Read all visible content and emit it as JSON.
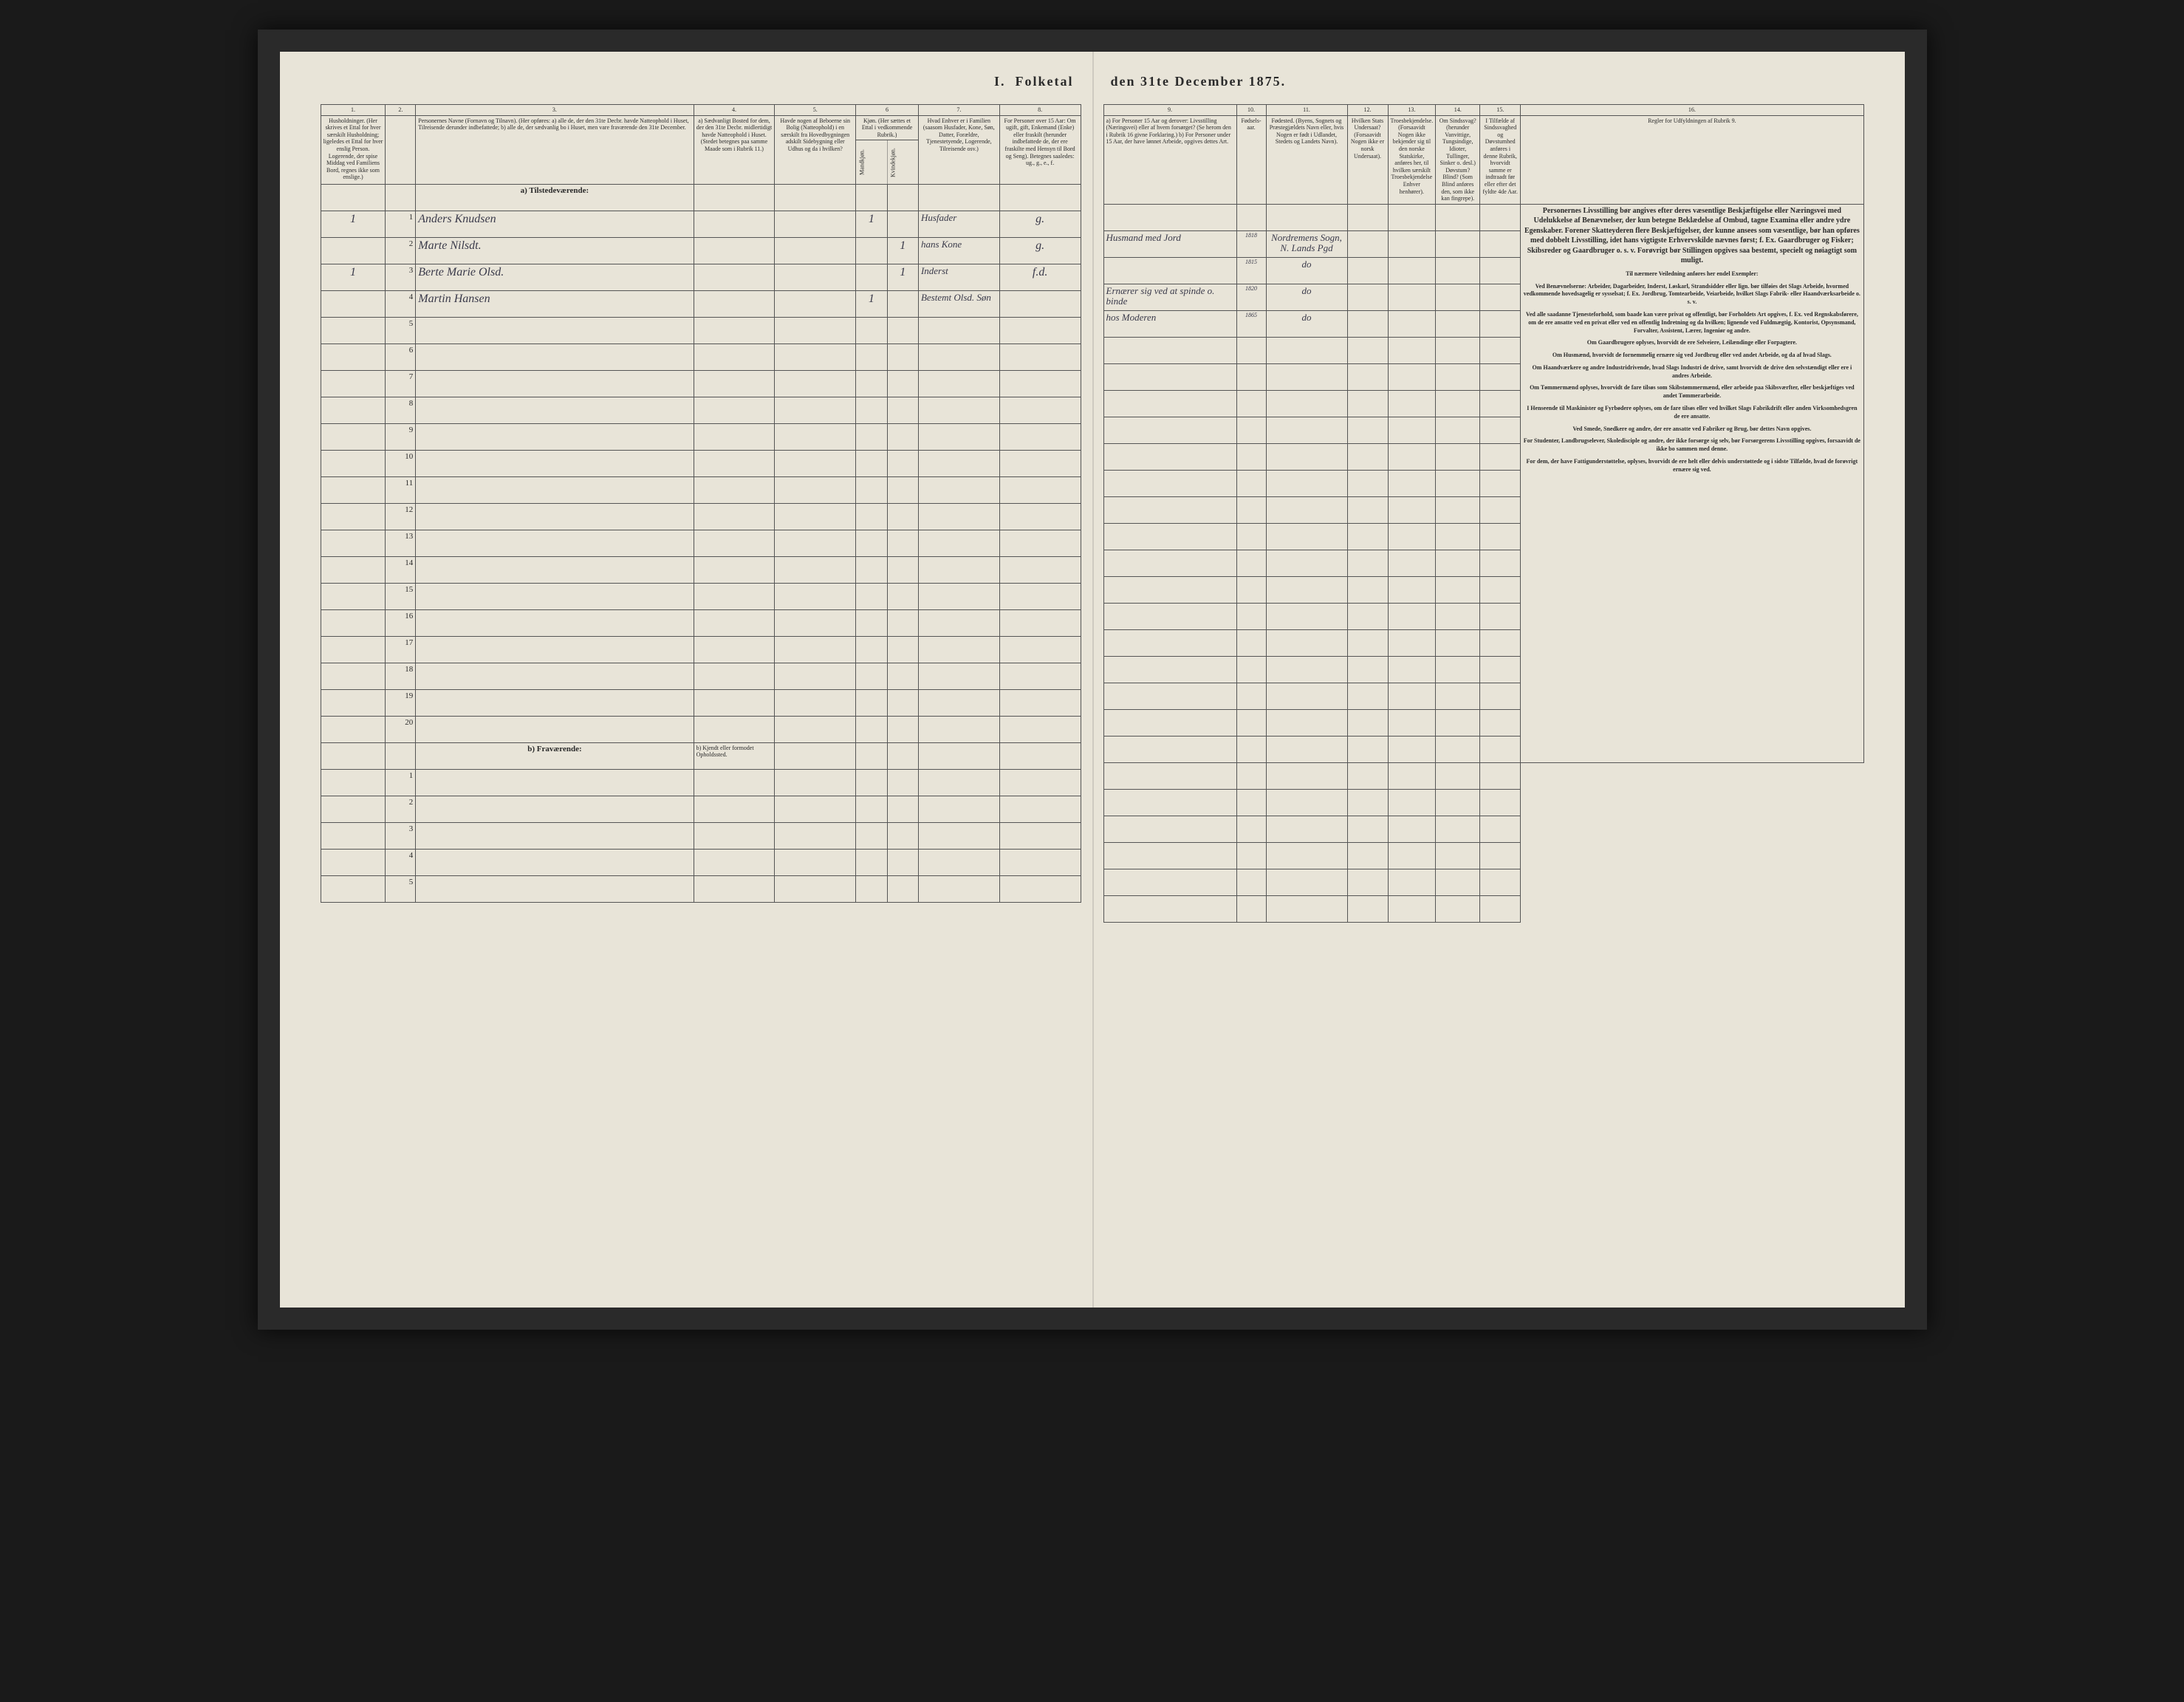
{
  "title": "I.  Folketal den 31te December 1875.",
  "columns_left": {
    "1": {
      "num": "1.",
      "header": "Husholdninger. (Her skrives et Ettal for hver særskilt Husholdning; ligeledes et Ettal for hver enslig Person. Logerende, der spise Middag ved Familiens Bord, regnes ikke som enslige.)"
    },
    "2": {
      "num": "2.",
      "header": ""
    },
    "3": {
      "num": "3.",
      "header": "Personernes Navne (Fornavn og Tilnavn). (Her opføres: a) alle de, der den 31te Decbr. havde Natteophold i Huset, Tilreisende derunder indbefattede; b) alle de, der sædvanlig bo i Huset, men vare fraværende den 31te December."
    },
    "4": {
      "num": "4.",
      "header": "a) Sædvanligt Bosted for dem, der den 31te Decbr. midlertidigt havde Natteophold i Huset. (Stedet betegnes paa samme Maade som i Rubrik 11.)"
    },
    "5": {
      "num": "5.",
      "header": "Havde nogen af Beboerne sin Bolig (Natteophold) i en særskilt fra Hovedbygningen adskilt Sidebygning eller Udhus og da i hvilken?"
    },
    "6": {
      "num": "6",
      "header": "Kjøn. (Her sættes et Ettal i vedkommende Rubrik.)",
      "sub_m": "Mandkjøn.",
      "sub_k": "Kvindekjøn."
    },
    "7": {
      "num": "7.",
      "header": "Hvad Enhver er i Familien (saasom Husfader, Kone, Søn, Datter, Forældre, Tjenestetyende, Logerende, Tilreisende osv.)"
    },
    "8": {
      "num": "8.",
      "header": "For Personer over 15 Aar: Om ugift, gift, Enkemand (Enke) eller fraskilt (herunder indbefattede de, der ere fraskilte med Hensyn til Bord og Seng). Betegnes saaledes: ug., g., e., f."
    }
  },
  "columns_right": {
    "9": {
      "num": "9.",
      "header": "a) For Personer 15 Aar og derover: Livsstilling (Næringsvei) eller af hvem forsørget? (Se herom den i Rubrik 16 givne Forklaring.) b) For Personer under 15 Aar, der have lønnet Arbeide, opgives dettes Art."
    },
    "10": {
      "num": "10.",
      "header": "Fødsels-aar."
    },
    "11": {
      "num": "11.",
      "header": "Fødested. (Byens, Sognets og Præstegjældets Navn eller, hvis Nogen er født i Udlandet, Stedets og Landets Navn)."
    },
    "12": {
      "num": "12.",
      "header": "Hvilken Stats Undersaat? (Forsaavidt Nogen ikke er norsk Undersaat)."
    },
    "13": {
      "num": "13.",
      "header": "Troesbekjendelse. (Forsaavidt Nogen ikke bekjender sig til den norske Statskirke, anføres her, til hvilken særskilt Troesbekjendelse Enhver henhører)."
    },
    "14": {
      "num": "14.",
      "header": "Om Sindssvag? (herunder Vanvittige, Tungsindige, Idioter, Tullinger, Sinker o. desl.) Døvstum? Blind? (Som Blind anføres den, som ikke kan fingrepe)."
    },
    "15": {
      "num": "15.",
      "header": "I Tilfælde af Sindssvaghed og Døvstumhed anføres i denne Rubrik, hvorvidt samme er indtraadt før eller efter det fyldte 4de Aar."
    },
    "16": {
      "num": "16.",
      "header": "Regler for Udfyldningen af Rubrik 9."
    }
  },
  "section_a": "a) Tilstedeværende:",
  "section_b": "b) Fraværende:",
  "section_b_col4": "b) Kjendt eller formodet Opholdssted.",
  "rows": [
    {
      "n": "1",
      "hh": "1",
      "name": "Anders Knudsen",
      "col6": "1",
      "col7": "Husfader",
      "col8": "g.",
      "col9": "Husmand med Jord",
      "year": "1818",
      "place": "Nordremens Sogn, N. Lands Pgd"
    },
    {
      "n": "2",
      "hh": "",
      "name": "Marte Nilsdt.",
      "col6": "1",
      "col7": "hans Kone",
      "col8": "g.",
      "col9": "",
      "year": "1815",
      "place": "do"
    },
    {
      "n": "3",
      "hh": "1",
      "name": "Berte Marie Olsd.",
      "col6": "1",
      "col7": "Inderst",
      "col8": "f.d.",
      "col9": "Ernærer sig ved at spinde o. binde",
      "year": "1820",
      "place": "do"
    },
    {
      "n": "4",
      "hh": "",
      "name": "Martin Hansen",
      "col6": "1",
      "col7": "Bestemt Olsd. Søn",
      "col8": "",
      "col9": "hos Moderen",
      "year": "1865",
      "place": "do"
    },
    {
      "n": "5"
    },
    {
      "n": "6"
    },
    {
      "n": "7"
    },
    {
      "n": "8"
    },
    {
      "n": "9"
    },
    {
      "n": "10"
    },
    {
      "n": "11"
    },
    {
      "n": "12"
    },
    {
      "n": "13"
    },
    {
      "n": "14"
    },
    {
      "n": "15"
    },
    {
      "n": "16"
    },
    {
      "n": "17"
    },
    {
      "n": "18"
    },
    {
      "n": "19"
    },
    {
      "n": "20"
    }
  ],
  "rows_b": [
    {
      "n": "1"
    },
    {
      "n": "2"
    },
    {
      "n": "3"
    },
    {
      "n": "4"
    },
    {
      "n": "5"
    }
  ],
  "instructions": {
    "p1": "Personernes Livsstilling bør angives efter deres væsentlige Beskjæftigelse eller Næringsvei med Udelukkelse af Benævnelser, der kun betegne Beklædelse af Ombud, tagne Examina eller andre ydre Egenskaber. Forener Skatteyderen flere Beskjæftigelser, der kunne ansees som væsentlige, bør han opføres med dobbelt Livsstilling, idet hans vigtigste Erhvervskilde nævnes først; f. Ex. Gaardbruger og Fisker; Skibsreder og Gaardbruger o. s. v. Forøvrigt bør Stillingen opgives saa bestemt, specielt og nøiagtigt som muligt.",
    "p2": "Til nærmere Veiledning anføres her endel Exempler:",
    "p3": "Ved Benævnelserne: Arbeider, Dagarbeider, Inderst, Løskarl, Strandsidder eller lign. bør tilføies det Slags Arbeide, hvormed vedkommende hovedsagelig er sysselsat; f. Ex. Jordbrug, Tomtearbeide, Veiarbeide, hvilket Slags Fabrik- eller Haandværksarbeide o. s. v.",
    "p4": "Ved alle saadanne Tjenesteforhold, som baade kan være privat og offentligt, bør Forholdets Art opgives, f. Ex. ved Regnskabsførere, om de ere ansatte ved en privat eller ved en offentlig Indretning og da hvilken; lignende ved Fuldmægtig, Kontorist, Opsynsmand, Forvalter, Assistent, Lærer, Ingeniør og andre.",
    "p5": "Om Gaardbrugere oplyses, hvorvidt de ere Selveiere, Leilændinge eller Forpagtere.",
    "p6": "Om Husmænd, hvorvidt de fornemmelig ernære sig ved Jordbrug eller ved andet Arbeide, og da af hvad Slags.",
    "p7": "Om Haandværkere og andre Industridrivende, hvad Slags Industri de drive, samt hvorvidt de drive den selvstændigt eller ere i andres Arbeide.",
    "p8": "Om Tømmermænd oplyses, hvorvidt de fare tilsøs som Skibstømmermænd, eller arbeide paa Skibsværfter, eller beskjæftiges ved andet Tømmerarbeide.",
    "p9": "I Henseende til Maskinister og Fyrbødere oplyses, om de fare tilsøs eller ved hvilket Slags Fabrikdrift eller anden Virksomhedsgren de ere ansatte.",
    "p10": "Ved Smede, Snedkere og andre, der ere ansatte ved Fabriker og Brug, bør dettes Navn opgives.",
    "p11": "For Studenter, Landbrugselever, Skoledisciple og andre, der ikke forsørge sig selv, bør Forsørgerens Livsstilling opgives, forsaavidt de ikke bo sammen med denne.",
    "p12": "For dem, der have Fattigunderstøttelse, oplyses, hvorvidt de ere helt eller delvis understøttede og i sidste Tilfælde, hvad de forøvrigt ernære sig ved."
  }
}
